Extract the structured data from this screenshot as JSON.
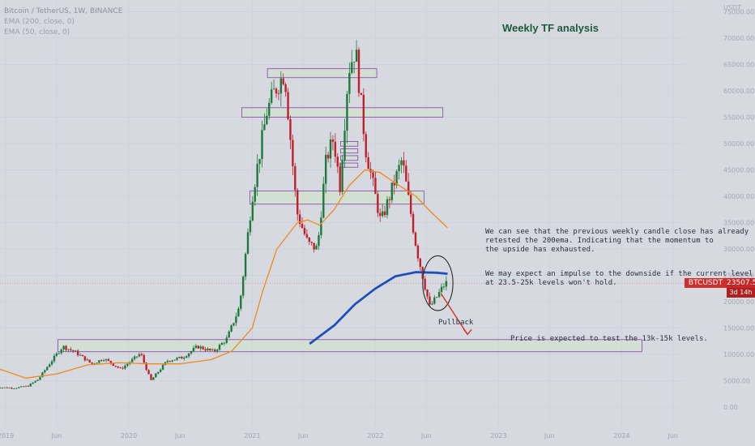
{
  "legend": {
    "symbol": "Bitcoin / TetherUS, 1W, BINANCE",
    "ema1": "EMA (200, close, 0)",
    "ema2": "EMA (50, close, 0)"
  },
  "annotations": {
    "title": "Weekly TF analysis",
    "note1": "We can see that the previous weekly candle close has already\nretested the 200ema. Indicating that the momentum to\nthe upside has exhausted.",
    "note2": "We may expect an impulse to the downside if the current level\nat 23.5-25k levels won't hold.",
    "pullback": "Pullback",
    "target": "Price is expected to test the 13k-15k levels."
  },
  "price_label": {
    "symbol": "BTCUSDT",
    "value": "23507.57",
    "timer": "3d 14h"
  },
  "colors": {
    "up": "#1e7a3a",
    "down": "#c0202a",
    "ema200": "#1f4fb8",
    "ema50": "#f08a1c",
    "zone_fill": "#cfe3c9",
    "zone_border": "#8a3fb0",
    "arrow": "#d9302a",
    "current": "#d06a6a"
  },
  "chart_data": {
    "type": "candlestick",
    "title": "Bitcoin / TetherUS, 1W, BINANCE",
    "ylim": [
      0,
      82000
    ],
    "y_ticks": [
      "USDT",
      "75000.00",
      "70000.00",
      "65000.00",
      "60000.00",
      "55000.00",
      "50000.00",
      "45000.00",
      "40000.00",
      "35000.00",
      "30000.00",
      "25000.00",
      "20000.00",
      "15000.00",
      "10000.00",
      "5000.00",
      "0.00"
    ],
    "y_tick_values": [
      null,
      75000,
      70000,
      65000,
      60000,
      55000,
      50000,
      45000,
      40000,
      35000,
      30000,
      25000,
      20000,
      15000,
      10000,
      5000,
      0
    ],
    "x_ticks": [
      {
        "label": "2019",
        "date": "2019-01-01"
      },
      {
        "label": "Jun",
        "date": "2019-06-01"
      },
      {
        "label": "2020",
        "date": "2020-01-01"
      },
      {
        "label": "Jun",
        "date": "2020-06-01"
      },
      {
        "label": "2021",
        "date": "2021-01-01"
      },
      {
        "label": "Jun",
        "date": "2021-06-01"
      },
      {
        "label": "2022",
        "date": "2022-01-01"
      },
      {
        "label": "Jun",
        "date": "2022-06-01"
      },
      {
        "label": "2023",
        "date": "2023-01-01"
      },
      {
        "label": "Jun",
        "date": "2023-06-01"
      },
      {
        "label": "2024",
        "date": "2024-01-01"
      },
      {
        "label": "Jun",
        "date": "2024-06-01"
      }
    ],
    "current_price": 23507.57,
    "candle_anchors": [
      [
        "2018-12-01",
        3800
      ],
      [
        "2019-02-01",
        3600
      ],
      [
        "2019-03-15",
        4000
      ],
      [
        "2019-04-15",
        5300
      ],
      [
        "2019-05-15",
        8000
      ],
      [
        "2019-06-26",
        11500
      ],
      [
        "2019-08-01",
        10500
      ],
      [
        "2019-09-20",
        8200
      ],
      [
        "2019-10-26",
        9200
      ],
      [
        "2019-12-15",
        7200
      ],
      [
        "2020-02-12",
        10200
      ],
      [
        "2020-03-13",
        5000
      ],
      [
        "2020-05-01",
        8800
      ],
      [
        "2020-06-15",
        9400
      ],
      [
        "2020-07-30",
        11500
      ],
      [
        "2020-09-15",
        10500
      ],
      [
        "2020-10-25",
        13000
      ],
      [
        "2020-12-01",
        19000
      ],
      [
        "2021-01-08",
        40000
      ],
      [
        "2021-02-20",
        56000
      ],
      [
        "2021-03-15",
        60000
      ],
      [
        "2021-04-14",
        63500
      ],
      [
        "2021-05-20",
        37000
      ],
      [
        "2021-06-22",
        31000
      ],
      [
        "2021-07-20",
        30000
      ],
      [
        "2021-08-15",
        47000
      ],
      [
        "2021-09-06",
        51000
      ],
      [
        "2021-09-25",
        42000
      ],
      [
        "2021-10-20",
        64000
      ],
      [
        "2021-11-10",
        68000
      ],
      [
        "2021-12-10",
        49000
      ],
      [
        "2022-01-24",
        35000
      ],
      [
        "2022-03-28",
        47000
      ],
      [
        "2022-05-10",
        30000
      ],
      [
        "2022-06-18",
        19000
      ],
      [
        "2022-07-05",
        20500
      ],
      [
        "2022-08-03",
        23500
      ]
    ],
    "candles_synthetic_note": null,
    "ema200": [
      [
        "2021-06-20",
        12000
      ],
      [
        "2021-09-01",
        15500
      ],
      [
        "2021-11-01",
        19500
      ],
      [
        "2022-01-01",
        22500
      ],
      [
        "2022-03-01",
        24800
      ],
      [
        "2022-05-01",
        25600
      ],
      [
        "2022-07-01",
        25500
      ],
      [
        "2022-08-03",
        25300
      ]
    ],
    "ema50": [
      [
        "2018-12-01",
        7500
      ],
      [
        "2019-03-01",
        5500
      ],
      [
        "2019-06-01",
        6300
      ],
      [
        "2019-09-01",
        8000
      ],
      [
        "2019-12-01",
        8400
      ],
      [
        "2020-03-01",
        8200
      ],
      [
        "2020-06-01",
        8200
      ],
      [
        "2020-09-01",
        9000
      ],
      [
        "2020-11-01",
        10600
      ],
      [
        "2021-01-01",
        15000
      ],
      [
        "2021-02-01",
        22000
      ],
      [
        "2021-03-15",
        30000
      ],
      [
        "2021-05-15",
        35000
      ],
      [
        "2021-06-15",
        35500
      ],
      [
        "2021-07-20",
        34500
      ],
      [
        "2021-09-01",
        37500
      ],
      [
        "2021-10-15",
        42000
      ],
      [
        "2021-12-01",
        45000
      ],
      [
        "2022-01-15",
        44500
      ],
      [
        "2022-03-01",
        42500
      ],
      [
        "2022-05-01",
        40000
      ],
      [
        "2022-06-15",
        37000
      ],
      [
        "2022-08-03",
        34000
      ]
    ],
    "zones": [
      {
        "start": "2019-06-05",
        "end": "2024-03-01",
        "low": 10500,
        "high": 12800
      },
      {
        "start": "2020-12-25",
        "end": "2022-05-25",
        "low": 38500,
        "high": 41000
      },
      {
        "start": "2020-12-01",
        "end": "2022-07-20",
        "low": 55000,
        "high": 56800
      },
      {
        "start": "2021-02-15",
        "end": "2022-01-05",
        "low": 62500,
        "high": 64200
      },
      {
        "start": "2021-09-20",
        "end": "2021-11-10",
        "low": 49500,
        "high": 50400
      },
      {
        "start": "2021-09-20",
        "end": "2021-11-10",
        "low": 48200,
        "high": 49000
      },
      {
        "start": "2021-09-20",
        "end": "2021-11-10",
        "low": 46800,
        "high": 47700
      },
      {
        "start": "2021-09-20",
        "end": "2021-11-10",
        "low": 45500,
        "high": 46300
      }
    ],
    "arrow": {
      "from": [
        "2022-07-15",
        21500
      ],
      "to": [
        "2022-10-01",
        13800
      ]
    },
    "circle": {
      "center": [
        "2022-07-05",
        23500
      ],
      "rx_days": 45,
      "ry_value": 5200
    }
  }
}
